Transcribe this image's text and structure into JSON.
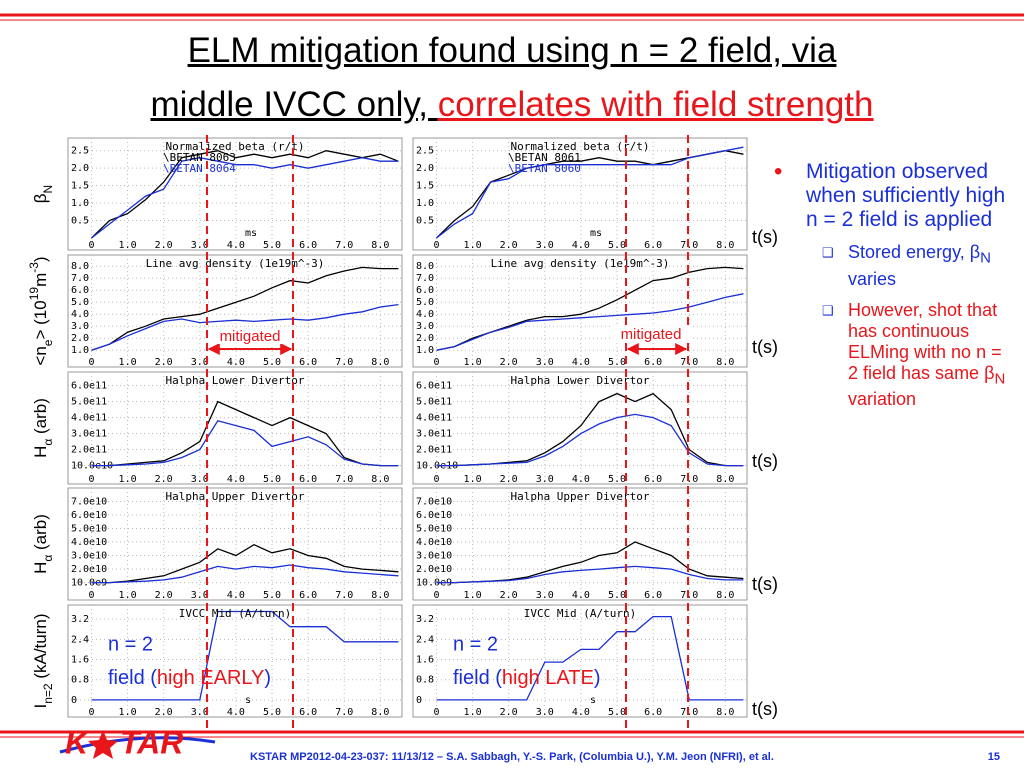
{
  "title": {
    "line1": "ELM mitigation found using n = 2 field, via",
    "line2": "middle IVCC only, ",
    "line2_highlight": "correlates with field strength"
  },
  "plots": {
    "type": "line",
    "x": [
      0,
      0.5,
      1,
      1.5,
      2,
      2.5,
      3,
      3.5,
      4,
      4.5,
      5,
      5.5,
      6,
      6.5,
      7,
      7.5,
      8,
      8.5
    ],
    "xlim": [
      -0.65,
      8.6
    ],
    "xticks": [
      0,
      {
        "value": 1,
        "label": "1.0"
      },
      {
        "value": 2,
        "label": "2.0"
      },
      {
        "value": 3,
        "label": "3.0"
      },
      {
        "value": 4,
        "label": "4.0"
      },
      {
        "value": 5,
        "label": "5.0"
      },
      {
        "value": 6,
        "label": "6.0"
      },
      {
        "value": 7,
        "label": "7.0"
      },
      {
        "value": 8,
        "label": "8.0"
      }
    ],
    "rows": [
      {
        "label": [
          {
            "text": "β",
            "style": "normal"
          },
          {
            "text": "N",
            "style": "sub"
          }
        ],
        "ylim": [
          0,
          2.75
        ],
        "xlabel": "ms",
        "yticks": [
          0.5,
          {
            "value": 1,
            "label": "1.0"
          },
          1.5,
          {
            "value": 2,
            "label": "2.0"
          },
          2.5
        ],
        "panels": [
          {
            "title": "Normalized beta (r/t)",
            "series": [
              {
                "name": "\\BETAN 8063",
                "color": "#000000",
                "values": [
                  0,
                  0.5,
                  0.7,
                  1.1,
                  1.6,
                  2.3,
                  2.4,
                  2.5,
                  2.3,
                  2.4,
                  2.3,
                  2.4,
                  2.3,
                  2.5,
                  2.4,
                  2.3,
                  2.4,
                  2.2
                ]
              },
              {
                "name": "\\BETAN 8064",
                "color": "#1a2fd6",
                "values": [
                  0,
                  0.4,
                  0.8,
                  1.2,
                  1.4,
                  2.2,
                  2.3,
                  2.2,
                  2.1,
                  2.1,
                  2.0,
                  2.1,
                  2.0,
                  2.1,
                  2.2,
                  2.3,
                  2.2,
                  2.2
                ]
              }
            ]
          },
          {
            "title": "Normalized beta (r/t)",
            "series": [
              {
                "name": "\\BETAN 8061",
                "color": "#000000",
                "values": [
                  0,
                  0.5,
                  0.9,
                  1.6,
                  1.8,
                  2.0,
                  2.1,
                  2.2,
                  2.2,
                  2.3,
                  2.2,
                  2.2,
                  2.1,
                  2.2,
                  2.3,
                  2.4,
                  2.5,
                  2.4
                ]
              },
              {
                "name": "\\BETAN 8060",
                "color": "#1a2fd6",
                "values": [
                  0,
                  0.4,
                  0.7,
                  1.6,
                  1.7,
                  2.0,
                  2.1,
                  2.1,
                  2.1,
                  2.1,
                  2.1,
                  2.1,
                  2.1,
                  2.1,
                  2.3,
                  2.4,
                  2.5,
                  2.6
                ]
              }
            ]
          }
        ]
      },
      {
        "label": [
          {
            "text": "<n",
            "style": "normal"
          },
          {
            "text": "e",
            "style": "sub"
          },
          {
            "text": "> (10",
            "style": "normal"
          },
          {
            "text": "19",
            "style": "sup"
          },
          {
            "text": "m",
            "style": "normal"
          },
          {
            "text": "-3",
            "style": "sup"
          },
          {
            "text": ")",
            "style": "normal"
          }
        ],
        "ylim": [
          0.6,
          8.6
        ],
        "yticks": [
          {
            "value": 1,
            "label": "1.0"
          },
          {
            "value": 2,
            "label": "2.0"
          },
          {
            "value": 3,
            "label": "3.0"
          },
          {
            "value": 4,
            "label": "4.0"
          },
          {
            "value": 5,
            "label": "5.0"
          },
          {
            "value": 6,
            "label": "6.0"
          },
          {
            "value": 7,
            "label": "7.0"
          },
          {
            "value": 8,
            "label": "8.0"
          }
        ],
        "panels": [
          {
            "title": "Line avg density (1e19m^-3)",
            "series": [
              {
                "color": "#000000",
                "values": [
                  1.0,
                  1.5,
                  2.5,
                  3.0,
                  3.6,
                  3.8,
                  4.0,
                  4.5,
                  5.0,
                  5.5,
                  6.2,
                  6.8,
                  6.6,
                  7.2,
                  7.6,
                  7.9,
                  7.8,
                  7.8
                ]
              },
              {
                "color": "#1a2fd6",
                "values": [
                  1.0,
                  1.5,
                  2.2,
                  2.8,
                  3.4,
                  3.6,
                  3.3,
                  3.4,
                  3.5,
                  3.4,
                  3.5,
                  3.6,
                  3.5,
                  3.7,
                  4.0,
                  4.2,
                  4.6,
                  4.8
                ]
              }
            ]
          },
          {
            "title": "Line avg density (1e19m^-3)",
            "series": [
              {
                "color": "#000000",
                "values": [
                  1.0,
                  1.3,
                  2.0,
                  2.5,
                  3.0,
                  3.5,
                  3.8,
                  3.8,
                  4.0,
                  4.5,
                  5.2,
                  6.0,
                  6.8,
                  7.0,
                  7.5,
                  7.8,
                  7.9,
                  7.8
                ]
              },
              {
                "color": "#1a2fd6",
                "values": [
                  1.0,
                  1.3,
                  1.9,
                  2.5,
                  2.9,
                  3.4,
                  3.5,
                  3.6,
                  3.7,
                  3.8,
                  3.9,
                  4.0,
                  4.1,
                  4.3,
                  4.6,
                  5.0,
                  5.4,
                  5.7
                ]
              }
            ]
          }
        ]
      },
      {
        "label": [
          {
            "text": "H",
            "style": "normal"
          },
          {
            "text": "α",
            "style": "sub"
          },
          {
            "text": " (arb)",
            "style": "normal"
          }
        ],
        "ylim": [
          60000000000.0,
          660000000000.0
        ],
        "yticks": [
          {
            "value": 100000000000.0,
            "label": "10.0e10"
          },
          {
            "value": 200000000000.0,
            "label": "2.0e11"
          },
          {
            "value": 300000000000.0,
            "label": "3.0e11"
          },
          {
            "value": 400000000000.0,
            "label": "4.0e11"
          },
          {
            "value": 500000000000.0,
            "label": "5.0e11"
          },
          {
            "value": 600000000000.0,
            "label": "6.0e11"
          }
        ],
        "panels": [
          {
            "title": "Halpha Lower Divertor",
            "series": [
              {
                "color": "#000000",
                "values": [
                  100000000000.0,
                  100000000000.0,
                  110000000000.0,
                  120000000000.0,
                  130000000000.0,
                  180000000000.0,
                  250000000000.0,
                  500000000000.0,
                  450000000000.0,
                  400000000000.0,
                  350000000000.0,
                  400000000000.0,
                  350000000000.0,
                  300000000000.0,
                  150000000000.0,
                  110000000000.0,
                  100000000000.0,
                  100000000000.0
                ]
              },
              {
                "color": "#1a2fd6",
                "values": [
                  100000000000.0,
                  100000000000.0,
                  105000000000.0,
                  110000000000.0,
                  120000000000.0,
                  150000000000.0,
                  200000000000.0,
                  380000000000.0,
                  350000000000.0,
                  320000000000.0,
                  220000000000.0,
                  250000000000.0,
                  280000000000.0,
                  230000000000.0,
                  140000000000.0,
                  110000000000.0,
                  100000000000.0,
                  100000000000.0
                ]
              }
            ]
          },
          {
            "title": "Halpha Lower Divertor",
            "series": [
              {
                "color": "#000000",
                "values": [
                  100000000000.0,
                  100000000000.0,
                  105000000000.0,
                  110000000000.0,
                  120000000000.0,
                  130000000000.0,
                  180000000000.0,
                  250000000000.0,
                  350000000000.0,
                  500000000000.0,
                  550000000000.0,
                  500000000000.0,
                  550000000000.0,
                  450000000000.0,
                  200000000000.0,
                  120000000000.0,
                  100000000000.0,
                  100000000000.0
                ]
              },
              {
                "color": "#1a2fd6",
                "values": [
                  100000000000.0,
                  100000000000.0,
                  105000000000.0,
                  110000000000.0,
                  115000000000.0,
                  120000000000.0,
                  160000000000.0,
                  220000000000.0,
                  300000000000.0,
                  360000000000.0,
                  400000000000.0,
                  420000000000.0,
                  400000000000.0,
                  350000000000.0,
                  180000000000.0,
                  110000000000.0,
                  100000000000.0,
                  100000000000.0
                ]
              }
            ]
          }
        ]
      },
      {
        "label": [
          {
            "text": "H",
            "style": "normal"
          },
          {
            "text": "α",
            "style": "sub"
          },
          {
            "text": " (arb)",
            "style": "normal"
          }
        ],
        "ylim": [
          6000000000.0,
          77000000000.0
        ],
        "yticks": [
          {
            "value": 10000000000.0,
            "label": "10.0e9"
          },
          {
            "value": 20000000000.0,
            "label": "2.0e10"
          },
          {
            "value": 30000000000.0,
            "label": "3.0e10"
          },
          {
            "value": 40000000000.0,
            "label": "4.0e10"
          },
          {
            "value": 50000000000.0,
            "label": "5.0e10"
          },
          {
            "value": 60000000000.0,
            "label": "6.0e10"
          },
          {
            "value": 70000000000.0,
            "label": "7.0e10"
          }
        ],
        "panels": [
          {
            "title": "Halpha Upper Divertor",
            "series": [
              {
                "color": "#000000",
                "values": [
                  10000000000.0,
                  10000000000.0,
                  11000000000.0,
                  13000000000.0,
                  15000000000.0,
                  20000000000.0,
                  25000000000.0,
                  35000000000.0,
                  30000000000.0,
                  38000000000.0,
                  32000000000.0,
                  35000000000.0,
                  30000000000.0,
                  28000000000.0,
                  22000000000.0,
                  20000000000.0,
                  19000000000.0,
                  18000000000.0
                ]
              },
              {
                "color": "#1a2fd6",
                "values": [
                  10000000000.0,
                  10000000000.0,
                  10500000000.0,
                  11000000000.0,
                  12000000000.0,
                  14000000000.0,
                  18000000000.0,
                  22000000000.0,
                  20000000000.0,
                  22000000000.0,
                  21000000000.0,
                  23000000000.0,
                  21000000000.0,
                  20000000000.0,
                  18000000000.0,
                  17000000000.0,
                  16000000000.0,
                  15000000000.0
                ]
              }
            ]
          },
          {
            "title": "Halpha Upper Divertor",
            "series": [
              {
                "color": "#000000",
                "values": [
                  10000000000.0,
                  10000000000.0,
                  10500000000.0,
                  11000000000.0,
                  12000000000.0,
                  14000000000.0,
                  18000000000.0,
                  22000000000.0,
                  25000000000.0,
                  30000000000.0,
                  32000000000.0,
                  40000000000.0,
                  35000000000.0,
                  30000000000.0,
                  20000000000.0,
                  15000000000.0,
                  14000000000.0,
                  13000000000.0
                ]
              },
              {
                "color": "#1a2fd6",
                "values": [
                  10000000000.0,
                  10000000000.0,
                  10500000000.0,
                  11000000000.0,
                  11500000000.0,
                  13000000000.0,
                  16000000000.0,
                  18000000000.0,
                  19000000000.0,
                  20000000000.0,
                  21000000000.0,
                  22000000000.0,
                  21000000000.0,
                  20000000000.0,
                  16000000000.0,
                  13000000000.0,
                  12000000000.0,
                  12000000000.0
                ]
              }
            ]
          }
        ]
      },
      {
        "label": [
          {
            "text": "I",
            "style": "normal"
          },
          {
            "text": "n=2",
            "style": "sub"
          },
          {
            "text": " (kA/turn)",
            "style": "normal"
          }
        ],
        "ylim": [
          -0.2,
          3.6
        ],
        "xlabel": "s",
        "yticks": [
          0,
          0.8,
          1.6,
          2.4,
          3.2
        ],
        "panels": [
          {
            "title": "IVCC Mid (A/turn)",
            "series": [
              {
                "color": "#1a2fd6",
                "values": [
                  0,
                  0,
                  0,
                  0,
                  0,
                  0,
                  0,
                  3.5,
                  3.5,
                  3.5,
                  3.5,
                  2.9,
                  2.9,
                  2.9,
                  2.3,
                  2.3,
                  2.3,
                  2.3
                ]
              }
            ]
          },
          {
            "title": "IVCC Mid (A/turn)",
            "series": [
              {
                "color": "#1a2fd6",
                "values": [
                  0,
                  0,
                  0,
                  0,
                  0,
                  0,
                  1.5,
                  1.5,
                  2.0,
                  2.0,
                  2.7,
                  2.7,
                  3.3,
                  3.3,
                  0,
                  0,
                  0,
                  0
                ]
              }
            ]
          }
        ]
      }
    ]
  },
  "annotations": {
    "mitigated": [
      "mitigated",
      "mitigated"
    ],
    "time_unit": "t(s)",
    "field_labels": [
      {
        "line1": "n = 2",
        "pre": "field (",
        "highlight": "high EARLY",
        "post": ")"
      },
      {
        "line1": "n = 2",
        "pre": "field (",
        "highlight": "high LATE",
        "post": ")"
      }
    ]
  },
  "bullets": {
    "main": "Mitigation observed when sufficiently high n = 2 field is applied",
    "sub": [
      [
        "Stored energy, ",
        "β",
        "N",
        " varies"
      ],
      [
        "However, shot that has continuous ELMing with no n = 2 field has same ",
        "β",
        "N",
        " variation"
      ]
    ]
  },
  "footer": {
    "logo_left": "K",
    "logo_right": "TAR",
    "text": "KSTAR MP2012-04-23-037: 11/13/12 – S.A. Sabbagh, Y.-S. Park, (Columbia U.), Y.M. Jeon (NFRI), et al.",
    "page": "15"
  }
}
